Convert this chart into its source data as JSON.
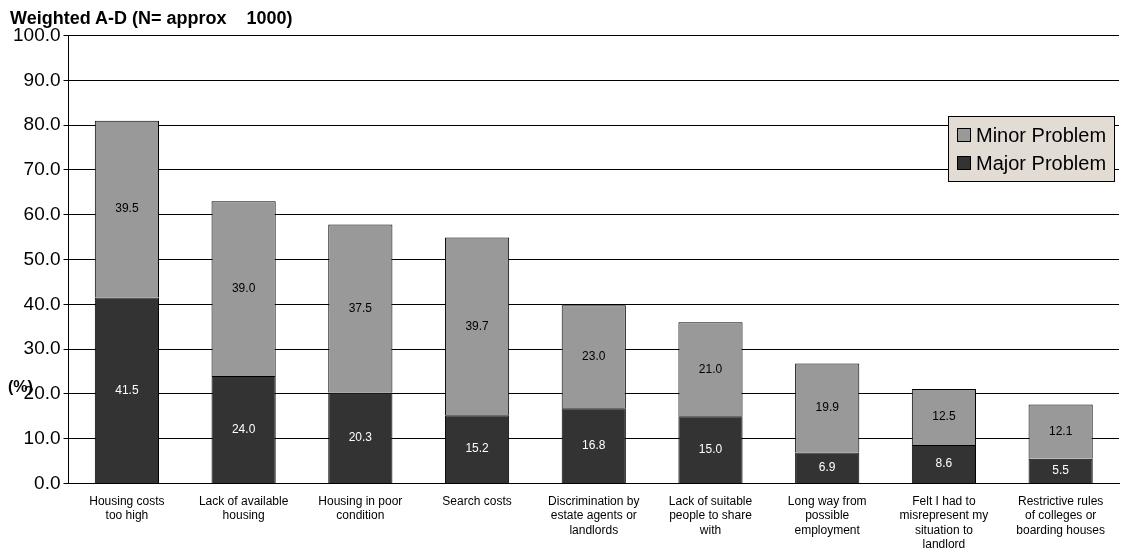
{
  "chart_data": {
    "type": "bar",
    "title": "Weighted A-D (N= approx    1000)",
    "ylabel": "(%)",
    "categories": [
      "Housing costs too high",
      "Lack of available housing",
      "Housing in poor condition",
      "Search costs",
      "Discrimination by estate agents or landlords",
      "Lack of suitable people to share with",
      "Long way from possible employment",
      "Felt I had to misrepresent my situation to landlord",
      "Restrictive rules of colleges or boarding houses"
    ],
    "stacked": true,
    "series": [
      {
        "name": "Major Problem",
        "color": "#333333",
        "values": [
          41.5,
          24.0,
          20.3,
          15.2,
          16.8,
          15.0,
          6.9,
          8.6,
          5.5
        ],
        "value_labels": [
          "41.5",
          "24.0",
          "20.3",
          "15.2",
          "16.8",
          "15.0",
          "6.9",
          "8.6",
          "5.5"
        ]
      },
      {
        "name": "Minor Problem",
        "color": "#999999",
        "values": [
          39.5,
          39.0,
          37.5,
          39.7,
          23.0,
          21.0,
          19.9,
          12.5,
          12.1
        ],
        "value_labels": [
          "39.5",
          "39.0",
          "37.5",
          "39.7",
          "23.0",
          "21.0",
          "19.9",
          "12.5",
          "12.1"
        ]
      }
    ],
    "ylim": [
      0,
      100
    ],
    "yticks": [
      {
        "value": 0,
        "label": "0.0"
      },
      {
        "value": 10,
        "label": "10.0"
      },
      {
        "value": 20,
        "label": "20.0"
      },
      {
        "value": 30,
        "label": "30.0"
      },
      {
        "value": 40,
        "label": "40.0"
      },
      {
        "value": 50,
        "label": "50.0"
      },
      {
        "value": 60,
        "label": "60.0"
      },
      {
        "value": 70,
        "label": "70.0"
      },
      {
        "value": 80,
        "label": "80.0"
      },
      {
        "value": 90,
        "label": "90.0"
      },
      {
        "value": 100,
        "label": "100.0"
      }
    ],
    "grid": "y",
    "legend": "top right"
  }
}
